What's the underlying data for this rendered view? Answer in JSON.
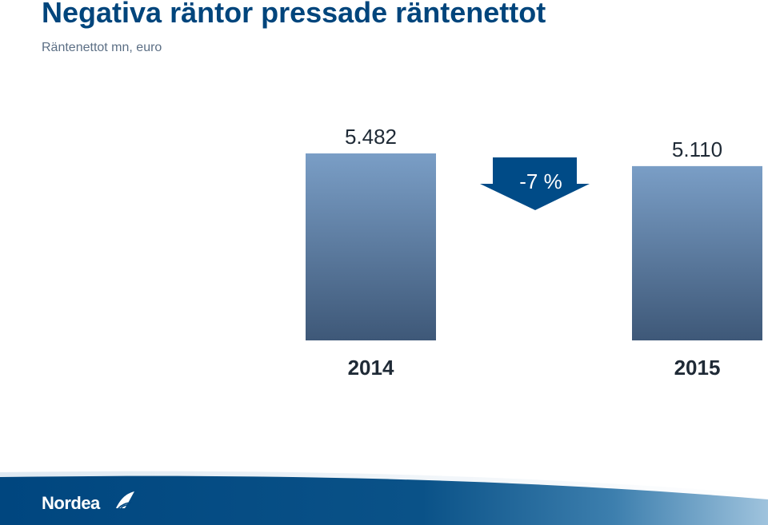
{
  "slide": {
    "title": "Negativa räntor pressade räntenettot",
    "subtitle": "Räntenettot mn, euro"
  },
  "chart_data": {
    "type": "bar",
    "title": "Negativa räntor pressade räntenettot",
    "subtitle": "Räntenettot mn, euro",
    "categories": [
      "2014",
      "2015"
    ],
    "values": [
      5482,
      5110
    ],
    "value_labels": [
      "5.482",
      "5.110"
    ],
    "ylim": [
      0,
      5482
    ],
    "grid": false,
    "annotation": {
      "text": "-7 %",
      "shape": "down-arrow",
      "between": [
        "2014",
        "2015"
      ]
    }
  },
  "brand": {
    "name": "Nordea",
    "logo_name": "Nordea",
    "colors": {
      "title": "#00457c",
      "bar_top": "#7a9ec6",
      "bar_bottom": "#3e5878",
      "arrow": "#004b87",
      "footer": "#00467f"
    }
  }
}
